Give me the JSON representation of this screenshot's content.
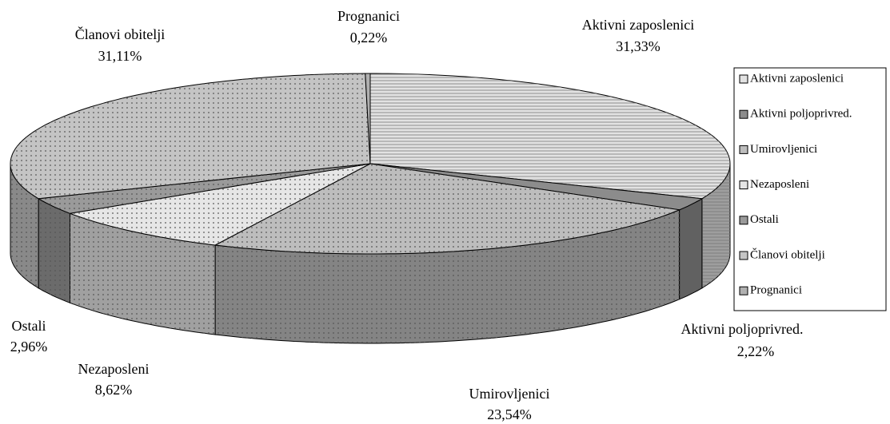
{
  "chart_data": {
    "type": "pie",
    "categories": [
      "Aktivni zaposlenici",
      "Aktivni  poljoprivred.",
      "Umirovljenici",
      "Nezaposleni",
      "Ostali",
      "Članovi obitelji",
      "Prognanici"
    ],
    "values": [
      31.33,
      2.22,
      23.54,
      8.62,
      2.96,
      31.11,
      0.22
    ],
    "value_labels": [
      "31,33%",
      "2,22%",
      "23,54%",
      "8,62%",
      "2,96%",
      "31,11%",
      "0,22%"
    ],
    "colors": [
      "#e2e2e2",
      "#8c8c8c",
      "#bdbdbd",
      "#e6e6e6",
      "#9a9a9a",
      "#c4c4c4",
      "#b0b0b0"
    ],
    "legend": "right"
  }
}
